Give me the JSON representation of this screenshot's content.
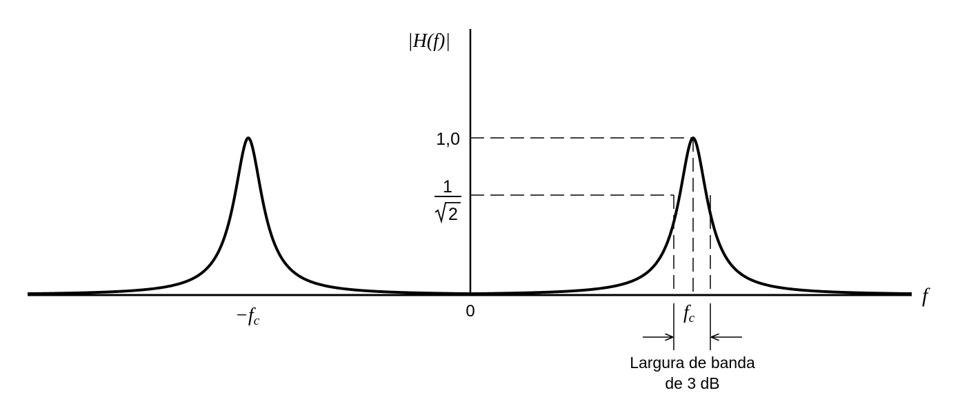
{
  "diagram": {
    "y_axis_label": "|H(f)|",
    "x_axis_label": "f",
    "tick_one": "1,0",
    "tick_frac_numerator": "1",
    "tick_frac_denominator": "2",
    "label_neg_fc_sign": "−",
    "label_f": "f",
    "label_c": "c",
    "label_zero": "0",
    "bandwidth_line1": "Largura de banda",
    "bandwidth_line2": "de 3 dB",
    "peak_value": 1.0,
    "half_power_value": 0.7071
  }
}
